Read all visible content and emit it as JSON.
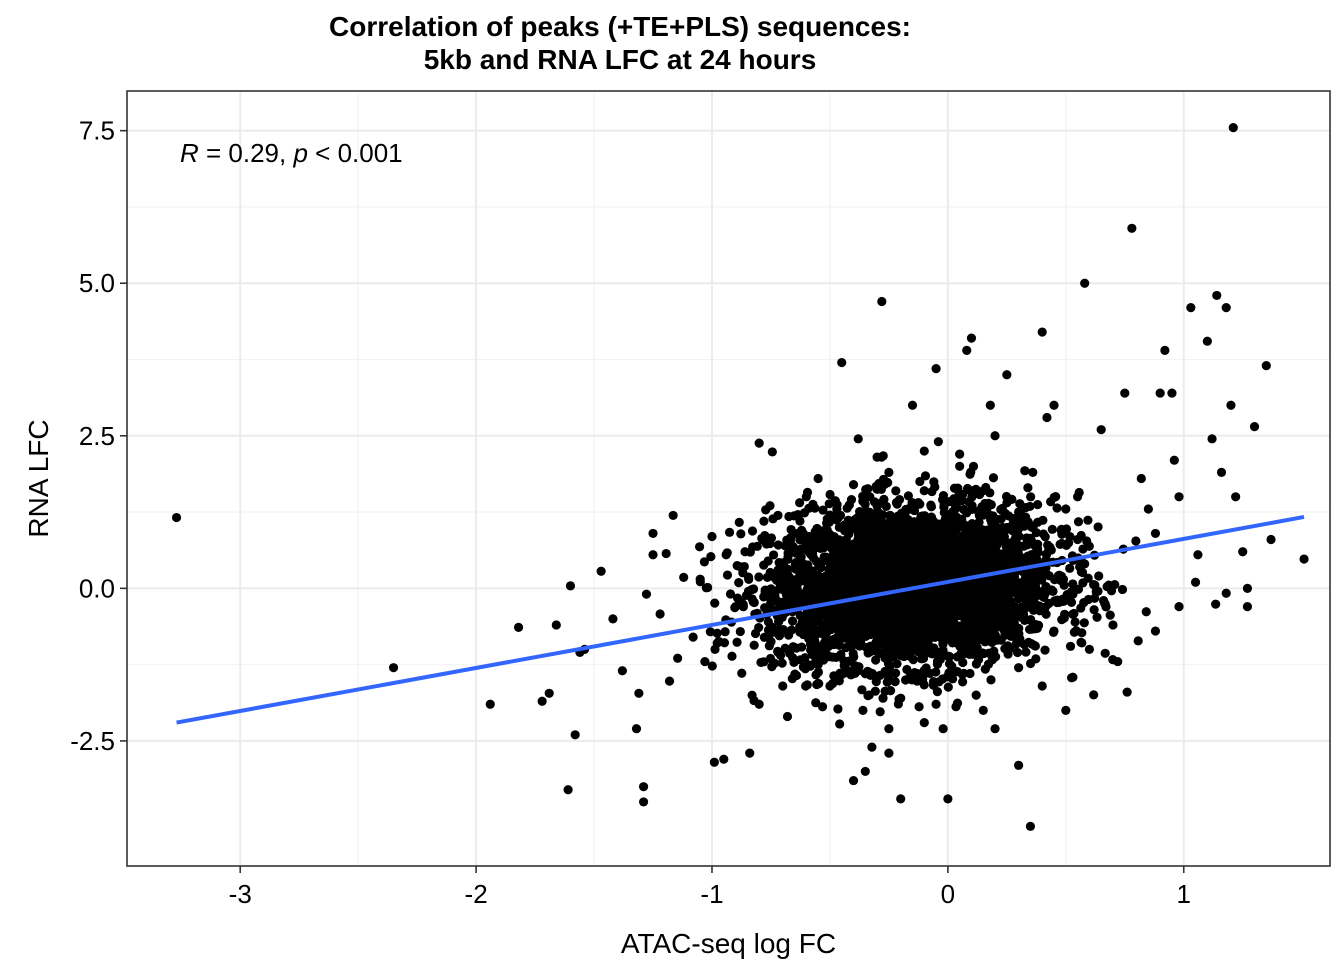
{
  "chart_data": {
    "type": "scatter",
    "title_line1": "Correlation of peaks (+TE+PLS) sequences:",
    "title_line2": "5kb and RNA LFC at 24 hours",
    "xlabel": "ATAC-seq log FC",
    "ylabel": "RNA LFC",
    "xlim": [
      -3.48,
      1.62
    ],
    "ylim": [
      -4.55,
      8.15
    ],
    "x_ticks": [
      -3,
      -2,
      -1,
      0,
      1
    ],
    "x_tick_labels": [
      "-3",
      "-2",
      "-1",
      "0",
      "1"
    ],
    "y_ticks": [
      -2.5,
      0.0,
      2.5,
      5.0,
      7.5
    ],
    "y_tick_labels": [
      "-2.5",
      "0.0",
      "2.5",
      "5.0",
      "7.5"
    ],
    "grid": true,
    "annotation": {
      "r_symbol": "R",
      "r_text": " = 0.29, ",
      "p_symbol": "p",
      "p_text": " < 0.001"
    },
    "fit_line": {
      "color": "#3366FF",
      "x": [
        -3.27,
        1.51
      ],
      "y": [
        -2.2,
        1.17
      ]
    },
    "point_color": "#000000",
    "points": [
      [
        -3.27,
        1.16
      ],
      [
        -2.35,
        -1.3
      ],
      [
        -1.94,
        -1.9
      ],
      [
        -1.82,
        -0.64
      ],
      [
        -1.72,
        -1.85
      ],
      [
        -1.69,
        -1.72
      ],
      [
        -1.66,
        -0.6
      ],
      [
        -1.6,
        0.04
      ],
      [
        -1.61,
        -3.3
      ],
      [
        -1.58,
        -2.4
      ],
      [
        -1.56,
        -1.05
      ],
      [
        -1.54,
        -1.0
      ],
      [
        -1.47,
        0.28
      ],
      [
        -1.42,
        -0.5
      ],
      [
        -1.38,
        -1.35
      ],
      [
        -1.32,
        -2.3
      ],
      [
        -1.31,
        -1.72
      ],
      [
        -1.29,
        -3.25
      ],
      [
        -1.29,
        -3.5
      ],
      [
        -1.25,
        0.9
      ],
      [
        -1.25,
        0.55
      ],
      [
        -1.22,
        -0.42
      ],
      [
        -1.18,
        -1.52
      ],
      [
        -1.12,
        0.18
      ],
      [
        -1.08,
        -0.8
      ],
      [
        -1.05,
        0.15
      ],
      [
        -1.03,
        -1.2
      ],
      [
        -1.0,
        0.85
      ],
      [
        -0.99,
        -2.85
      ],
      [
        -0.95,
        -2.8
      ],
      [
        -0.94,
        0.55
      ],
      [
        -0.9,
        -0.3
      ],
      [
        -0.86,
        0.6
      ],
      [
        -0.84,
        -2.7
      ],
      [
        -0.8,
        -1.9
      ],
      [
        -0.78,
        1.1
      ],
      [
        -0.75,
        -0.2
      ],
      [
        -0.72,
        0.3
      ],
      [
        -0.7,
        -1.6
      ],
      [
        -0.68,
        -2.1
      ],
      [
        -0.8,
        2.38
      ],
      [
        -0.6,
        1.5
      ],
      [
        -0.55,
        0.9
      ],
      [
        -0.52,
        -0.9
      ],
      [
        -0.5,
        1.2
      ],
      [
        -0.45,
        3.7
      ],
      [
        -0.4,
        1.7
      ],
      [
        -0.4,
        -3.15
      ],
      [
        -0.38,
        2.45
      ],
      [
        -0.36,
        -2.0
      ],
      [
        -0.35,
        -3.0
      ],
      [
        -0.28,
        4.7
      ],
      [
        -0.25,
        1.9
      ],
      [
        -0.25,
        -2.7
      ],
      [
        -0.2,
        -3.45
      ],
      [
        -0.15,
        3.0
      ],
      [
        -0.1,
        2.25
      ],
      [
        -0.05,
        3.6
      ],
      [
        -0.02,
        -2.3
      ],
      [
        0.0,
        -3.45
      ],
      [
        0.05,
        2.0
      ],
      [
        0.08,
        3.9
      ],
      [
        0.1,
        4.1
      ],
      [
        0.15,
        -2.0
      ],
      [
        0.18,
        3.0
      ],
      [
        0.2,
        2.5
      ],
      [
        0.25,
        3.5
      ],
      [
        0.3,
        -2.9
      ],
      [
        0.35,
        -3.9
      ],
      [
        0.4,
        4.2
      ],
      [
        0.42,
        2.8
      ],
      [
        0.45,
        3.0
      ],
      [
        0.5,
        -2.0
      ],
      [
        0.55,
        1.5
      ],
      [
        0.58,
        5.0
      ],
      [
        0.6,
        -1.0
      ],
      [
        0.65,
        2.6
      ],
      [
        0.7,
        -0.6
      ],
      [
        0.72,
        -1.2
      ],
      [
        0.75,
        3.2
      ],
      [
        0.76,
        -1.7
      ],
      [
        0.78,
        5.9
      ],
      [
        0.82,
        1.8
      ],
      [
        0.85,
        1.3
      ],
      [
        0.88,
        0.9
      ],
      [
        0.9,
        3.2
      ],
      [
        0.92,
        3.9
      ],
      [
        0.95,
        3.2
      ],
      [
        0.96,
        2.1
      ],
      [
        0.98,
        1.5
      ],
      [
        1.03,
        4.6
      ],
      [
        1.05,
        0.1
      ],
      [
        1.1,
        4.05
      ],
      [
        1.12,
        2.45
      ],
      [
        1.14,
        4.8
      ],
      [
        1.16,
        1.9
      ],
      [
        1.18,
        4.6
      ],
      [
        1.2,
        3.0
      ],
      [
        1.21,
        7.55
      ],
      [
        1.22,
        1.5
      ],
      [
        1.25,
        0.6
      ],
      [
        1.27,
        -0.3
      ],
      [
        1.3,
        2.65
      ],
      [
        1.35,
        3.65
      ],
      [
        1.37,
        0.8
      ],
      [
        1.51,
        0.48
      ],
      [
        1.18,
        -0.08
      ],
      [
        1.27,
        0.0
      ],
      [
        1.06,
        0.55
      ],
      [
        0.98,
        -0.3
      ],
      [
        0.88,
        -0.7
      ],
      [
        0.66,
        -0.2
      ],
      [
        0.52,
        -0.95
      ],
      [
        0.3,
        -1.3
      ],
      [
        0.12,
        -1.75
      ],
      [
        -0.05,
        -1.9
      ],
      [
        -0.2,
        -1.8
      ],
      [
        -0.35,
        -1.4
      ],
      [
        -0.55,
        -1.25
      ],
      [
        -0.62,
        -0.7
      ],
      [
        -0.58,
        0.55
      ],
      [
        -0.46,
        1.0
      ],
      [
        -0.3,
        1.35
      ],
      [
        -0.1,
        1.6
      ],
      [
        0.15,
        1.6
      ],
      [
        0.3,
        1.25
      ],
      [
        0.48,
        0.95
      ],
      [
        0.58,
        0.4
      ],
      [
        0.62,
        -0.35
      ],
      [
        0.45,
        -0.7
      ],
      [
        -0.65,
        -0.1
      ],
      [
        -0.72,
        -0.45
      ],
      [
        -0.7,
        0.2
      ],
      [
        -0.62,
        0.95
      ],
      [
        -0.5,
        -1.6
      ],
      [
        -0.1,
        -2.2
      ],
      [
        0.2,
        -2.3
      ],
      [
        0.4,
        -1.6
      ],
      [
        0.55,
        0.8
      ],
      [
        0.36,
        1.9
      ],
      [
        0.05,
        2.2
      ],
      [
        -0.3,
        2.15
      ],
      [
        -0.55,
        1.8
      ],
      [
        -0.25,
        -2.3
      ],
      [
        0.5,
        1.3
      ]
    ],
    "cloud": {
      "x_center": -0.15,
      "y_center": 0.05,
      "sx": 0.3,
      "sy": 0.65,
      "n": 3800
    }
  }
}
